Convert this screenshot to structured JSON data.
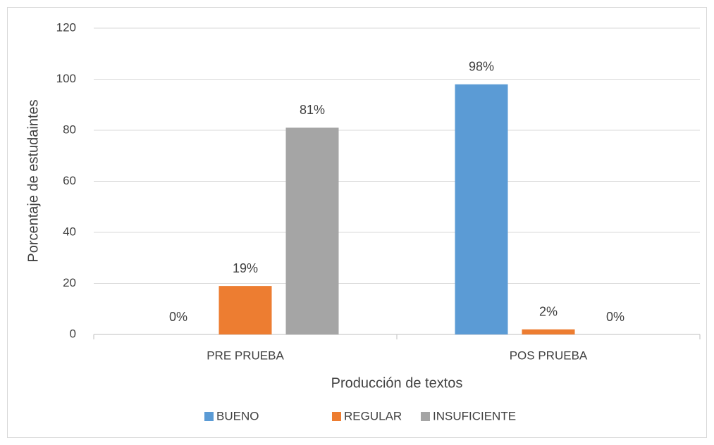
{
  "chart_data": {
    "type": "bar",
    "x_label": "Producción de textos",
    "y_label": "Porcentaje de estudaintes",
    "categories": [
      "PRE PRUEBA",
      "POS PRUEBA"
    ],
    "series": [
      {
        "name": "BUENO",
        "color": "#5b9bd5",
        "values": [
          0,
          98
        ],
        "value_labels": [
          "0%",
          "98%"
        ]
      },
      {
        "name": "REGULAR",
        "color": "#ed7d31",
        "values": [
          19,
          2
        ],
        "value_labels": [
          "19%",
          "2%"
        ]
      },
      {
        "name": "INSUFICIENTE",
        "color": "#a5a5a5",
        "values": [
          81,
          0
        ],
        "value_labels": [
          "81%",
          "0%"
        ]
      }
    ],
    "ylim": [
      0,
      120
    ],
    "yticks": [
      0,
      20,
      40,
      60,
      80,
      100,
      120
    ],
    "grid": true,
    "legend": "bottom"
  }
}
